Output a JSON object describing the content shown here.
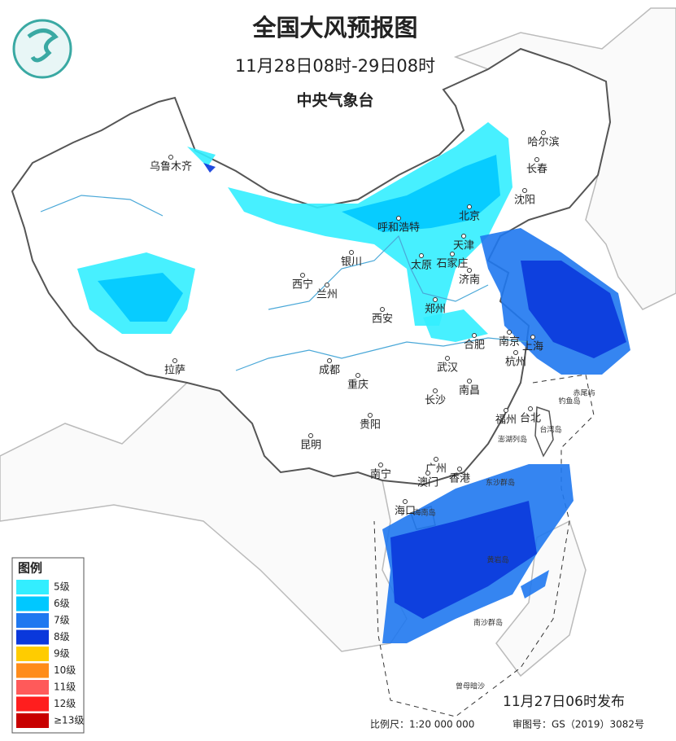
{
  "header": {
    "title": "全国大风预报图",
    "time_range": "11月28日08时-29日08时",
    "agency": "中央气象台"
  },
  "cities": [
    "乌鲁木齐",
    "拉萨",
    "西宁",
    "兰州",
    "银川",
    "呼和浩特",
    "北京",
    "天津",
    "太原",
    "石家庄",
    "济南",
    "郑州",
    "西安",
    "成都",
    "重庆",
    "贵阳",
    "昆明",
    "南宁",
    "广州",
    "澳门",
    "香港",
    "海口",
    "长沙",
    "武汉",
    "南昌",
    "合肥",
    "南京",
    "上海",
    "杭州",
    "福州",
    "台北",
    "沈阳",
    "长春",
    "哈尔滨"
  ],
  "islands": [
    "海南岛",
    "台湾岛",
    "澎湖列岛",
    "钓鱼岛",
    "赤尾屿",
    "东沙群岛",
    "黄岩岛",
    "南沙群岛",
    "曾母暗沙"
  ],
  "legend": {
    "title": "图例",
    "items": [
      {
        "label": "5级",
        "color": "#33eeff"
      },
      {
        "label": "6级",
        "color": "#00c8ff"
      },
      {
        "label": "7级",
        "color": "#1f78f0"
      },
      {
        "label": "8级",
        "color": "#0a38dc"
      },
      {
        "label": "9级",
        "color": "#ffcc00"
      },
      {
        "label": "10级",
        "color": "#ff8c1a"
      },
      {
        "label": "11级",
        "color": "#ff5a5a"
      },
      {
        "label": "12级",
        "color": "#ff1e1e"
      },
      {
        "label": "≥13级",
        "color": "#c80000"
      }
    ]
  },
  "footer": {
    "issued": "11月27日06时发布",
    "scale": "比例尺：1:20 000 000",
    "approval": "审图号：GS（2019）3082号"
  }
}
